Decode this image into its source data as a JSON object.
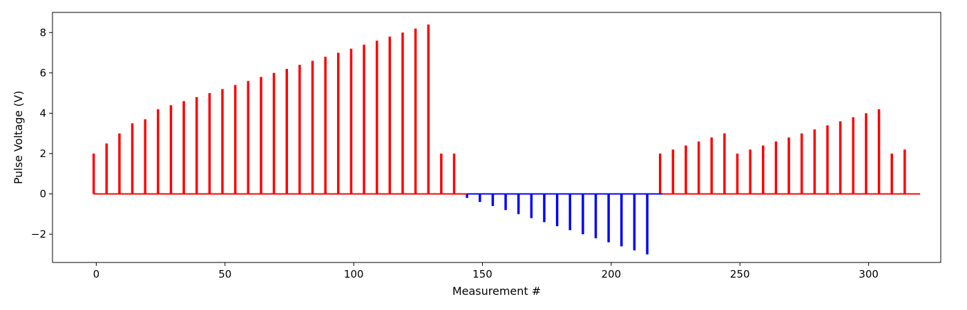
{
  "chart_data": {
    "type": "bar",
    "xlabel": "Measurement #",
    "ylabel": "Pulse Voltage (V)",
    "xlim": [
      -17,
      328
    ],
    "ylim": [
      -3.4,
      9.0
    ],
    "xticks": [
      0,
      50,
      100,
      150,
      200,
      250,
      300
    ],
    "yticks": [
      -2,
      0,
      2,
      4,
      6,
      8
    ],
    "grid": false,
    "baseline_segments": [
      {
        "x_start": -1,
        "x_end": 144,
        "color": "#ff0000"
      },
      {
        "x_start": 144,
        "x_end": 220,
        "color": "#0000ff"
      },
      {
        "x_start": 220,
        "x_end": 320,
        "color": "#ff0000"
      }
    ],
    "series": [
      {
        "color": "#ff0000",
        "x": [
          -1,
          4,
          9,
          14,
          19,
          24,
          29,
          34,
          39,
          44,
          49,
          54,
          59,
          64,
          69,
          74,
          79,
          84,
          89,
          94,
          99,
          104,
          109,
          114,
          119,
          124,
          129,
          134,
          139
        ],
        "values": [
          2.0,
          2.5,
          3.0,
          3.5,
          3.7,
          4.2,
          4.4,
          4.6,
          4.8,
          5.0,
          5.2,
          5.4,
          5.6,
          5.8,
          6.0,
          6.2,
          6.4,
          6.6,
          6.8,
          7.0,
          7.2,
          7.4,
          7.6,
          7.8,
          8.0,
          8.2,
          8.4,
          2.0,
          2.0
        ]
      },
      {
        "color": "#0000ff",
        "x": [
          144,
          149,
          154,
          159,
          164,
          169,
          174,
          179,
          184,
          189,
          194,
          199,
          204,
          209,
          214
        ],
        "values": [
          -0.2,
          -0.4,
          -0.6,
          -0.8,
          -1.0,
          -1.2,
          -1.4,
          -1.6,
          -1.8,
          -2.0,
          -2.2,
          -2.4,
          -2.6,
          -2.8,
          -3.0
        ]
      },
      {
        "color": "#ff0000",
        "x": [
          219,
          224,
          229,
          234,
          239,
          244,
          249,
          254,
          259,
          264,
          269,
          274,
          279,
          284,
          289,
          294,
          299,
          304,
          309,
          314
        ],
        "values": [
          2.0,
          2.2,
          2.4,
          2.6,
          2.8,
          3.0,
          2.0,
          2.2,
          2.4,
          2.6,
          2.8,
          3.0,
          3.2,
          3.4,
          3.6,
          3.8,
          4.0,
          4.2,
          2.0,
          2.2
        ]
      }
    ]
  }
}
